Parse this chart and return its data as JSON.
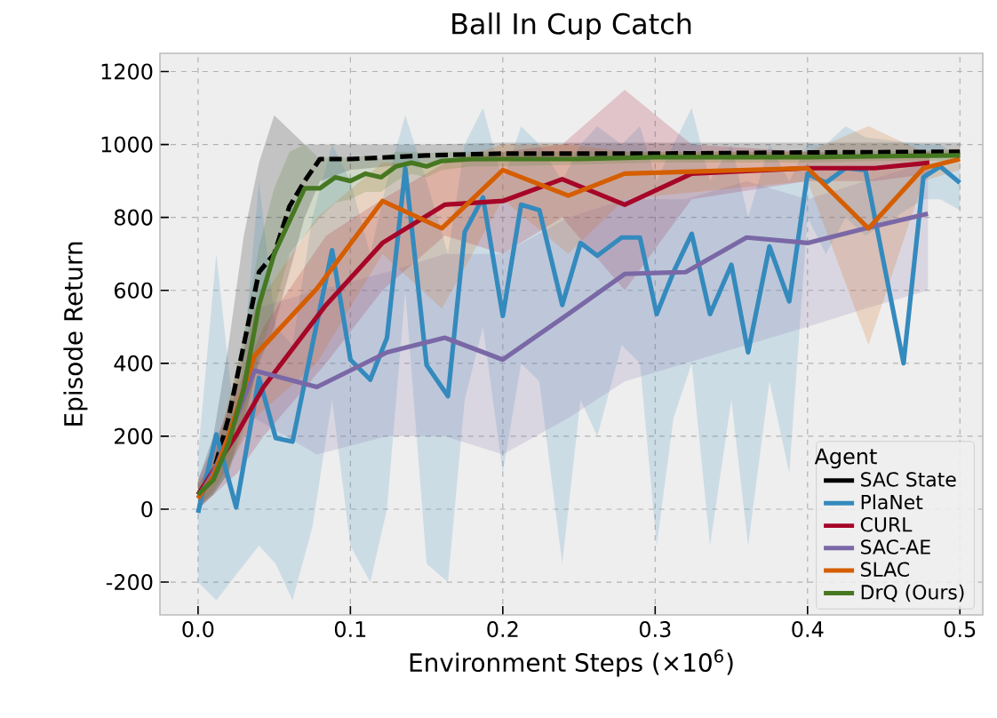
{
  "chart_data": {
    "type": "line",
    "title": "Ball In Cup Catch",
    "xlabel": "Environment Steps (×10$^{6}$)",
    "ylabel": "Episode Return",
    "legend_title": "Agent",
    "xlim": [
      -0.025,
      0.515
    ],
    "ylim": [
      -290,
      1250
    ],
    "xticks": [
      {
        "value": 0,
        "label": "0.0"
      },
      0.1,
      0.2,
      0.3,
      0.4,
      0.5
    ],
    "yticks": [
      -200,
      0,
      200,
      400,
      600,
      800,
      1000,
      1200
    ],
    "grid": true,
    "legend": "bottom right",
    "series": [
      {
        "name": "SAC State",
        "color": "#000000",
        "line_style": "dashed",
        "x": [
          0,
          0.01,
          0.02,
          0.03,
          0.04,
          0.05,
          0.06,
          0.07,
          0.08,
          0.1,
          0.15,
          0.2,
          0.3,
          0.4,
          0.5
        ],
        "values": [
          40,
          100,
          250,
          450,
          650,
          700,
          830,
          900,
          960,
          960,
          970,
          975,
          975,
          978,
          980
        ],
        "lower": [
          0,
          40,
          100,
          250,
          400,
          500,
          650,
          800,
          900,
          930,
          950,
          955,
          960,
          960,
          965
        ],
        "upper": [
          80,
          200,
          450,
          750,
          950,
          1080,
          1040,
          1000,
          1000,
          1000,
          1000,
          1005,
          1005,
          1005,
          1005
        ]
      },
      {
        "name": "PlaNet",
        "color": "#348abd",
        "line_style": "solid",
        "x": [
          0,
          0.012,
          0.025,
          0.04,
          0.051,
          0.062,
          0.075,
          0.088,
          0.1,
          0.113,
          0.124,
          0.136,
          0.15,
          0.164,
          0.175,
          0.187,
          0.2,
          0.212,
          0.224,
          0.239,
          0.251,
          0.262,
          0.278,
          0.29,
          0.301,
          0.312,
          0.324,
          0.336,
          0.35,
          0.361,
          0.375,
          0.388,
          0.4,
          0.412,
          0.425,
          0.438,
          0.463,
          0.476,
          0.487,
          0.5
        ],
        "values": [
          -10,
          205,
          5,
          360,
          195,
          185,
          450,
          710,
          410,
          355,
          470,
          935,
          395,
          310,
          760,
          855,
          530,
          835,
          820,
          560,
          730,
          695,
          745,
          745,
          535,
          650,
          755,
          535,
          670,
          430,
          720,
          570,
          920,
          895,
          935,
          930,
          400,
          910,
          940,
          895
        ],
        "lower": [
          -200,
          -250,
          -180,
          -100,
          -150,
          -250,
          -50,
          300,
          -100,
          -200,
          0,
          600,
          -150,
          -200,
          300,
          500,
          100,
          400,
          350,
          -150,
          300,
          200,
          450,
          400,
          -100,
          250,
          400,
          -100,
          300,
          -100,
          350,
          100,
          800,
          700,
          800,
          750,
          null,
          850,
          850,
          820
        ],
        "upper": [
          150,
          700,
          200,
          900,
          500,
          450,
          800,
          1000,
          900,
          700,
          900,
          1080,
          900,
          700,
          1000,
          1100,
          900,
          1050,
          1000,
          900,
          1000,
          1050,
          1000,
          1050,
          900,
          1000,
          1100,
          900,
          1000,
          800,
          1000,
          900,
          1000,
          1000,
          1050,
          1020,
          null,
          1000,
          1000,
          960
        ]
      },
      {
        "name": "CURL",
        "color": "#a60628",
        "line_style": "solid",
        "x": [
          0,
          0.026,
          0.043,
          0.084,
          0.121,
          0.162,
          0.2,
          0.239,
          0.28,
          0.324,
          0.4,
          0.444,
          0.48
        ],
        "values": [
          40,
          210,
          335,
          560,
          730,
          835,
          845,
          905,
          835,
          920,
          935,
          935,
          950
        ],
        "lower": [
          0,
          100,
          200,
          400,
          600,
          750,
          700,
          800,
          600,
          850,
          900,
          900,
          920
        ],
        "upper": [
          80,
          330,
          500,
          750,
          850,
          950,
          980,
          1000,
          1150,
          1000,
          980,
          970,
          980
        ]
      },
      {
        "name": "SAC-AE",
        "color": "#7a68a6",
        "line_style": "solid",
        "x": [
          0,
          0.01,
          0.025,
          0.037,
          0.078,
          0.124,
          0.162,
          0.2,
          0.243,
          0.28,
          0.32,
          0.36,
          0.4,
          0.438,
          0.479
        ],
        "values": [
          30,
          100,
          250,
          380,
          335,
          430,
          470,
          410,
          535,
          645,
          650,
          745,
          730,
          770,
          810
        ],
        "lower": [
          0,
          50,
          150,
          250,
          150,
          200,
          200,
          150,
          250,
          350,
          400,
          450,
          500,
          550,
          600
        ],
        "upper": [
          60,
          150,
          350,
          550,
          600,
          650,
          700,
          700,
          800,
          850,
          850,
          900,
          850,
          900,
          950
        ]
      },
      {
        "name": "SLAC",
        "color": "#d55e00",
        "line_style": "solid",
        "x": [
          0,
          0.01,
          0.02,
          0.037,
          0.078,
          0.121,
          0.16,
          0.2,
          0.243,
          0.28,
          0.4,
          0.44,
          0.476,
          0.5
        ],
        "values": [
          30,
          90,
          200,
          420,
          605,
          845,
          770,
          930,
          860,
          920,
          935,
          770,
          935,
          960
        ],
        "lower": [
          0,
          50,
          120,
          250,
          400,
          700,
          550,
          850,
          700,
          850,
          900,
          450,
          900,
          930
        ],
        "upper": [
          60,
          140,
          300,
          550,
          800,
          950,
          950,
          1000,
          1000,
          980,
          980,
          1050,
          980,
          990
        ]
      },
      {
        "name": "DrQ (Ours)",
        "color": "#467821",
        "line_style": "solid",
        "x": [
          0,
          0.01,
          0.02,
          0.03,
          0.04,
          0.05,
          0.06,
          0.07,
          0.08,
          0.09,
          0.1,
          0.11,
          0.12,
          0.13,
          0.14,
          0.15,
          0.16,
          0.18,
          0.2,
          0.25,
          0.3,
          0.35,
          0.4,
          0.45,
          0.5
        ],
        "values": [
          40,
          80,
          180,
          330,
          560,
          700,
          790,
          880,
          880,
          910,
          900,
          920,
          910,
          940,
          950,
          940,
          955,
          960,
          960,
          960,
          965,
          965,
          965,
          968,
          970
        ],
        "lower": [
          10,
          40,
          100,
          220,
          420,
          550,
          700,
          750,
          800,
          840,
          850,
          870,
          870,
          900,
          920,
          910,
          930,
          940,
          940,
          945,
          950,
          950,
          950,
          955,
          955
        ],
        "upper": [
          70,
          130,
          280,
          480,
          720,
          880,
          980,
          1000,
          960,
          970,
          960,
          970,
          960,
          980,
          980,
          975,
          980,
          980,
          980,
          980,
          980,
          980,
          980,
          982,
          985
        ]
      }
    ]
  }
}
